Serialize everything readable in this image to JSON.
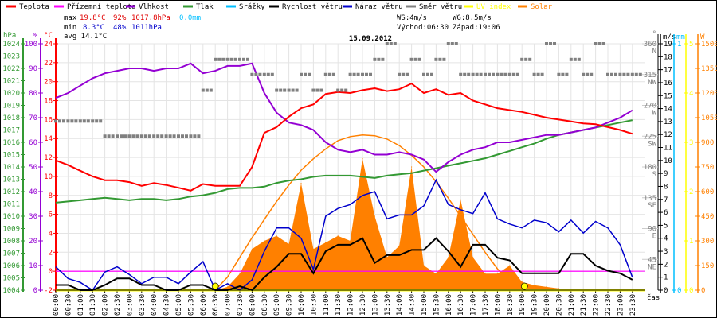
{
  "chart_data": {
    "type": "line",
    "title": "15.09.2012",
    "legend": [
      {
        "label": "Teplota",
        "color": "#ff0000"
      },
      {
        "label": "Přízemní teplota",
        "color": "#ff00ff"
      },
      {
        "label": "Vlhkost",
        "color": "#9400d3"
      },
      {
        "label": "Tlak",
        "color": "#339933"
      },
      {
        "label": "Srážky",
        "color": "#00bfff"
      },
      {
        "label": "Rychlost větru",
        "color": "#000000"
      },
      {
        "label": "Náraz větru",
        "color": "#0000cc"
      },
      {
        "label": "Směr větru",
        "color": "#808080"
      },
      {
        "label": "UV index",
        "color": "#ffff00"
      },
      {
        "label": "Solar",
        "color": "#ff8000"
      }
    ],
    "stats": {
      "max_label": "max",
      "max_temp": "19.8°C",
      "max_hum": "92%",
      "max_press": "1017.8hPa",
      "max_rain": "0.0mm",
      "min_label": "min",
      "min_temp": "8.3°C",
      "min_hum": "48%",
      "min_press": "1011hPa",
      "avg": "avg 14.1°C",
      "ws": "WS:4m/s",
      "wg": "WG:8.5m/s",
      "sunrise": "Východ:06:30",
      "sunset": "Západ:19:06"
    },
    "axes": {
      "press": {
        "unit": "hPa",
        "range": [
          1004,
          1024
        ],
        "ticks": [
          1004,
          1005,
          1006,
          1007,
          1008,
          1009,
          1010,
          1011,
          1012,
          1013,
          1014,
          1015,
          1016,
          1017,
          1018,
          1019,
          1020,
          1021,
          1022,
          1023,
          1024
        ]
      },
      "hum": {
        "unit": "%",
        "range": [
          0,
          100
        ],
        "ticks": [
          0,
          10,
          20,
          30,
          40,
          50,
          60,
          70,
          80,
          90,
          100
        ]
      },
      "temp": {
        "unit": "°C",
        "range": [
          -2,
          24
        ],
        "ticks": [
          -2,
          0,
          2,
          4,
          6,
          8,
          10,
          12,
          14,
          16,
          18,
          20,
          22,
          24
        ]
      },
      "dir": {
        "unit": "°",
        "range": [
          0,
          360
        ],
        "ticks": [
          {
            "v": 45,
            "l": "45",
            "d": "NE"
          },
          {
            "v": 90,
            "l": "90",
            "d": "E"
          },
          {
            "v": 135,
            "l": "135",
            "d": "SE"
          },
          {
            "v": 180,
            "l": "180",
            "d": "S"
          },
          {
            "v": 225,
            "l": "225",
            "d": "SW"
          },
          {
            "v": 270,
            "l": "270",
            "d": "W"
          },
          {
            "v": 315,
            "l": "315",
            "d": "NW"
          },
          {
            "v": 360,
            "l": "360",
            "d": "N"
          }
        ]
      },
      "wind": {
        "unit": "m/s",
        "range": [
          0,
          19
        ],
        "ticks": [
          0,
          1,
          2,
          3,
          4,
          5,
          6,
          7,
          8,
          9,
          10,
          11,
          12,
          13,
          14,
          15,
          16,
          17,
          18,
          19
        ]
      },
      "rain": {
        "unit": "mm",
        "range": [
          0,
          1
        ],
        "ticks": [
          0,
          1
        ]
      },
      "uv": {
        "unit": "",
        "range": [
          0,
          5
        ],
        "ticks": [
          0,
          1,
          2,
          3,
          4,
          5
        ]
      },
      "solar": {
        "unit": "W",
        "range": [
          0,
          1500
        ],
        "ticks": [
          0,
          150,
          300,
          450,
          600,
          750,
          900,
          1050,
          1200,
          1350,
          1500
        ]
      },
      "xlabel": "čas"
    },
    "x_labels": [
      "00:00",
      "00:30",
      "01:00",
      "01:30",
      "02:00",
      "02:30",
      "03:00",
      "03:30",
      "04:00",
      "04:30",
      "05:00",
      "05:30",
      "06:00",
      "06:30",
      "07:00",
      "07:30",
      "08:00",
      "08:30",
      "09:00",
      "09:30",
      "10:00",
      "10:30",
      "11:00",
      "11:30",
      "12:00",
      "12:30",
      "13:00",
      "13:30",
      "14:00",
      "14:30",
      "15:00",
      "15:30",
      "16:00",
      "16:30",
      "17:00",
      "17:30",
      "18:00",
      "18:30",
      "19:00",
      "19:30",
      "20:00",
      "20:30",
      "21:00",
      "21:30",
      "22:00",
      "22:30",
      "23:00",
      "23:30"
    ],
    "x_step_hours": 0.5,
    "series": {
      "temperature": [
        11.7,
        11.2,
        10.6,
        10.0,
        9.6,
        9.6,
        9.4,
        9.0,
        9.3,
        9.1,
        8.8,
        8.5,
        9.2,
        9.0,
        9.0,
        9.0,
        11.0,
        14.6,
        15.2,
        16.3,
        17.2,
        17.6,
        18.7,
        18.9,
        18.8,
        19.1,
        19.3,
        19.0,
        19.2,
        19.8,
        18.8,
        19.2,
        18.6,
        18.8,
        18.0,
        17.6,
        17.2,
        17.0,
        16.8,
        16.5,
        16.2,
        16.0,
        15.8,
        15.6,
        15.5,
        15.2,
        14.9,
        14.5
      ],
      "apparent_temperature": [
        0,
        0,
        0,
        0,
        0,
        0,
        0,
        0,
        0,
        0,
        0,
        0,
        0,
        0,
        0,
        0,
        0,
        0,
        0,
        0,
        0,
        0,
        0,
        0,
        0,
        0,
        0,
        0,
        0,
        0,
        0,
        0,
        0,
        0,
        0,
        0,
        0,
        0,
        0,
        0,
        0,
        0,
        0,
        0,
        0,
        0,
        0,
        0
      ],
      "humidity": [
        78,
        80,
        83,
        86,
        88,
        89,
        90,
        90,
        89,
        90,
        90,
        92,
        88,
        89,
        91,
        91,
        92,
        80,
        72,
        68,
        67,
        65,
        60,
        57,
        56,
        57,
        55,
        55,
        56,
        55,
        53,
        48,
        52,
        55,
        57,
        58,
        60,
        60,
        61,
        62,
        63,
        63,
        64,
        65,
        66,
        68,
        70,
        73
      ],
      "pressure": [
        1011.1,
        1011.2,
        1011.3,
        1011.4,
        1011.5,
        1011.4,
        1011.3,
        1011.4,
        1011.4,
        1011.3,
        1011.4,
        1011.6,
        1011.7,
        1011.9,
        1012.2,
        1012.3,
        1012.3,
        1012.4,
        1012.7,
        1012.9,
        1013.0,
        1013.2,
        1013.3,
        1013.3,
        1013.3,
        1013.2,
        1013.1,
        1013.3,
        1013.4,
        1013.5,
        1013.7,
        1013.9,
        1014.1,
        1014.3,
        1014.5,
        1014.7,
        1015.0,
        1015.3,
        1015.6,
        1015.9,
        1016.3,
        1016.6,
        1016.8,
        1017.0,
        1017.2,
        1017.4,
        1017.6,
        1017.8
      ],
      "rain": [
        0,
        0,
        0,
        0,
        0,
        0,
        0,
        0,
        0,
        0,
        0,
        0,
        0,
        0,
        0,
        0,
        0,
        0,
        0,
        0,
        0,
        0,
        0,
        0,
        0,
        0,
        0,
        0,
        0,
        0,
        0,
        0,
        0,
        0,
        0,
        0,
        0,
        0,
        0,
        0,
        0,
        0,
        0,
        0,
        0,
        0,
        0,
        0
      ],
      "wind_speed": [
        0.4,
        0.4,
        0,
        0,
        0.4,
        0.9,
        0.9,
        0.4,
        0.4,
        0,
        0,
        0.4,
        0.4,
        0,
        0,
        0.3,
        0,
        1.0,
        1.8,
        2.8,
        2.8,
        1.3,
        3.0,
        3.5,
        3.5,
        4.0,
        2.1,
        2.7,
        2.7,
        3.1,
        3.1,
        4.0,
        3.0,
        1.8,
        3.5,
        3.5,
        2.5,
        2.3,
        1.3,
        1.3,
        1.3,
        1.3,
        2.8,
        2.8,
        1.9,
        1.5,
        1.3,
        0.8
      ],
      "wind_gust": [
        1.8,
        0.9,
        0.6,
        0,
        1.4,
        1.8,
        1.2,
        0.5,
        1.0,
        1.0,
        0.5,
        1.4,
        2.2,
        0,
        0.5,
        0,
        0.8,
        3.0,
        4.8,
        4.8,
        4.0,
        1.6,
        5.7,
        6.3,
        6.6,
        7.3,
        7.6,
        5.5,
        5.8,
        5.8,
        6.5,
        8.5,
        6.6,
        6.2,
        5.9,
        7.5,
        5.5,
        5.1,
        4.8,
        5.4,
        5.2,
        4.5,
        5.4,
        4.4,
        5.3,
        4.8,
        3.5,
        1.0
      ],
      "wind_direction": [
        247,
        247,
        247,
        247,
        225,
        225,
        225,
        225,
        225,
        225,
        225,
        225,
        292,
        337,
        337,
        337,
        315,
        315,
        292,
        292,
        315,
        292,
        315,
        292,
        315,
        315,
        337,
        360,
        315,
        337,
        315,
        337,
        360,
        315,
        315,
        315,
        315,
        315,
        337,
        315,
        360,
        315,
        337,
        315,
        360,
        315,
        315,
        315
      ],
      "uv_index": [
        0,
        0,
        0,
        0,
        0,
        0,
        0,
        0,
        0,
        0,
        0,
        0,
        0,
        0,
        0,
        0,
        0,
        0,
        0,
        0,
        0,
        0,
        0,
        0,
        0,
        0,
        0,
        0,
        0,
        0,
        0,
        0,
        0,
        0,
        0,
        0,
        0,
        0,
        0,
        0,
        0,
        0,
        0,
        0,
        0,
        0,
        0,
        0
      ],
      "solar": [
        0,
        0,
        0,
        0,
        0,
        0,
        0,
        0,
        0,
        0,
        0,
        0,
        0,
        0,
        20,
        100,
        250,
        300,
        330,
        280,
        650,
        250,
        290,
        330,
        300,
        800,
        450,
        200,
        270,
        750,
        150,
        100,
        200,
        550,
        200,
        100,
        100,
        150,
        50,
        30,
        20,
        10,
        0,
        0,
        0,
        0,
        0,
        0
      ],
      "solar_theoretical": [
        0,
        0,
        0,
        0,
        0,
        0,
        0,
        0,
        0,
        0,
        0,
        0,
        0,
        0,
        80,
        200,
        320,
        430,
        540,
        640,
        730,
        800,
        860,
        910,
        935,
        945,
        940,
        920,
        880,
        820,
        750,
        660,
        560,
        450,
        340,
        230,
        130,
        50,
        0,
        0,
        0,
        0,
        0,
        0,
        0,
        0,
        0,
        0
      ]
    },
    "sun_markers": [
      6.5,
      19.1
    ]
  }
}
